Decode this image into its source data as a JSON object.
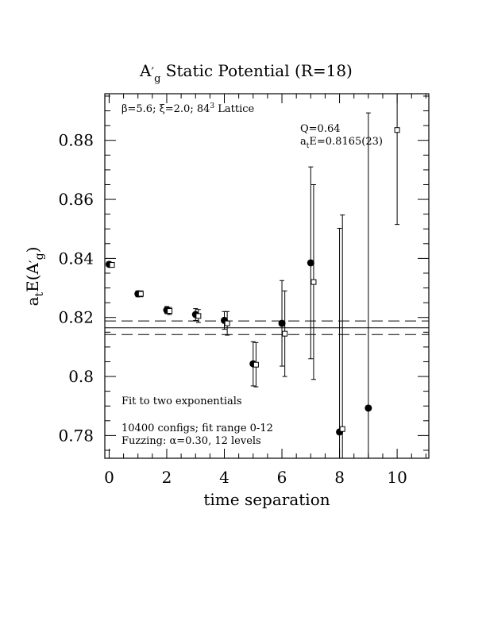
{
  "chart_data": {
    "type": "scatter",
    "title": "A′g  Static Potential (R=18)",
    "title_main": "A",
    "title_sub": "g",
    "title_rest": "  Static Potential (R=18)",
    "xlabel": "time separation",
    "ylabel_main": "a",
    "ylabel_sub1": "t",
    "ylabel_mid": "E(A",
    "ylabel_sub2": "g",
    "ylabel_end": ")",
    "xlim": [
      -0.15,
      11.1
    ],
    "ylim": [
      0.7723,
      0.8958
    ],
    "x_ticks": [
      0,
      2,
      4,
      6,
      8,
      10
    ],
    "x_tick_labels": [
      "0",
      "2",
      "4",
      "6",
      "8",
      "10"
    ],
    "y_ticks": [
      0.78,
      0.8,
      0.82,
      0.84,
      0.86,
      0.88
    ],
    "y_tick_labels": [
      "0.78",
      "0.8",
      "0.82",
      "0.84",
      "0.86",
      "0.88"
    ],
    "annotations": {
      "lattice_pre": "β=5.6; ξ=2.0; 84",
      "lattice_sup": "3",
      "lattice_post": " Lattice",
      "q_value": "Q=0.64",
      "energy_pre": "a",
      "energy_sub": "t",
      "energy_post": "E=0.8165(23)",
      "fit_type": "Fit to two exponentials",
      "configs": "10400 configs; fit range 0-12",
      "fuzzing": "Fuzzing: α=0.30, 12 levels"
    },
    "fit": {
      "value": 0.8165,
      "error": 0.0023,
      "x_range": [
        -0.15,
        11.1
      ]
    },
    "series": [
      {
        "marker": "filled-circle",
        "points": [
          {
            "x": 0.0,
            "y": 0.838,
            "err": 0.0006
          },
          {
            "x": 1.0,
            "y": 0.828,
            "err": 0.001
          },
          {
            "x": 2.0,
            "y": 0.8225,
            "err": 0.0012
          },
          {
            "x": 3.0,
            "y": 0.821,
            "err": 0.002
          },
          {
            "x": 4.0,
            "y": 0.819,
            "err": 0.003
          },
          {
            "x": 5.0,
            "y": 0.8043,
            "err": 0.0075
          },
          {
            "x": 6.0,
            "y": 0.818,
            "err": 0.0145
          },
          {
            "x": 7.0,
            "y": 0.8385,
            "err": 0.0325
          },
          {
            "x": 8.0,
            "y": 0.7812,
            "err": 0.069
          },
          {
            "x": 9.0,
            "y": 0.7893,
            "err": 0.1
          }
        ]
      },
      {
        "marker": "open-square",
        "points": [
          {
            "x": 0.1,
            "y": 0.8378,
            "err": 0.0008
          },
          {
            "x": 1.1,
            "y": 0.828,
            "err": 0.001
          },
          {
            "x": 2.1,
            "y": 0.8222,
            "err": 0.0012
          },
          {
            "x": 3.1,
            "y": 0.8205,
            "err": 0.0022
          },
          {
            "x": 4.1,
            "y": 0.818,
            "err": 0.004
          },
          {
            "x": 5.1,
            "y": 0.804,
            "err": 0.0075
          },
          {
            "x": 6.1,
            "y": 0.8145,
            "err": 0.0145
          },
          {
            "x": 7.1,
            "y": 0.832,
            "err": 0.033
          },
          {
            "x": 8.1,
            "y": 0.7822,
            "err": 0.0725
          },
          {
            "x": 10.0,
            "y": 0.8835,
            "err": 0.032
          }
        ]
      }
    ]
  }
}
